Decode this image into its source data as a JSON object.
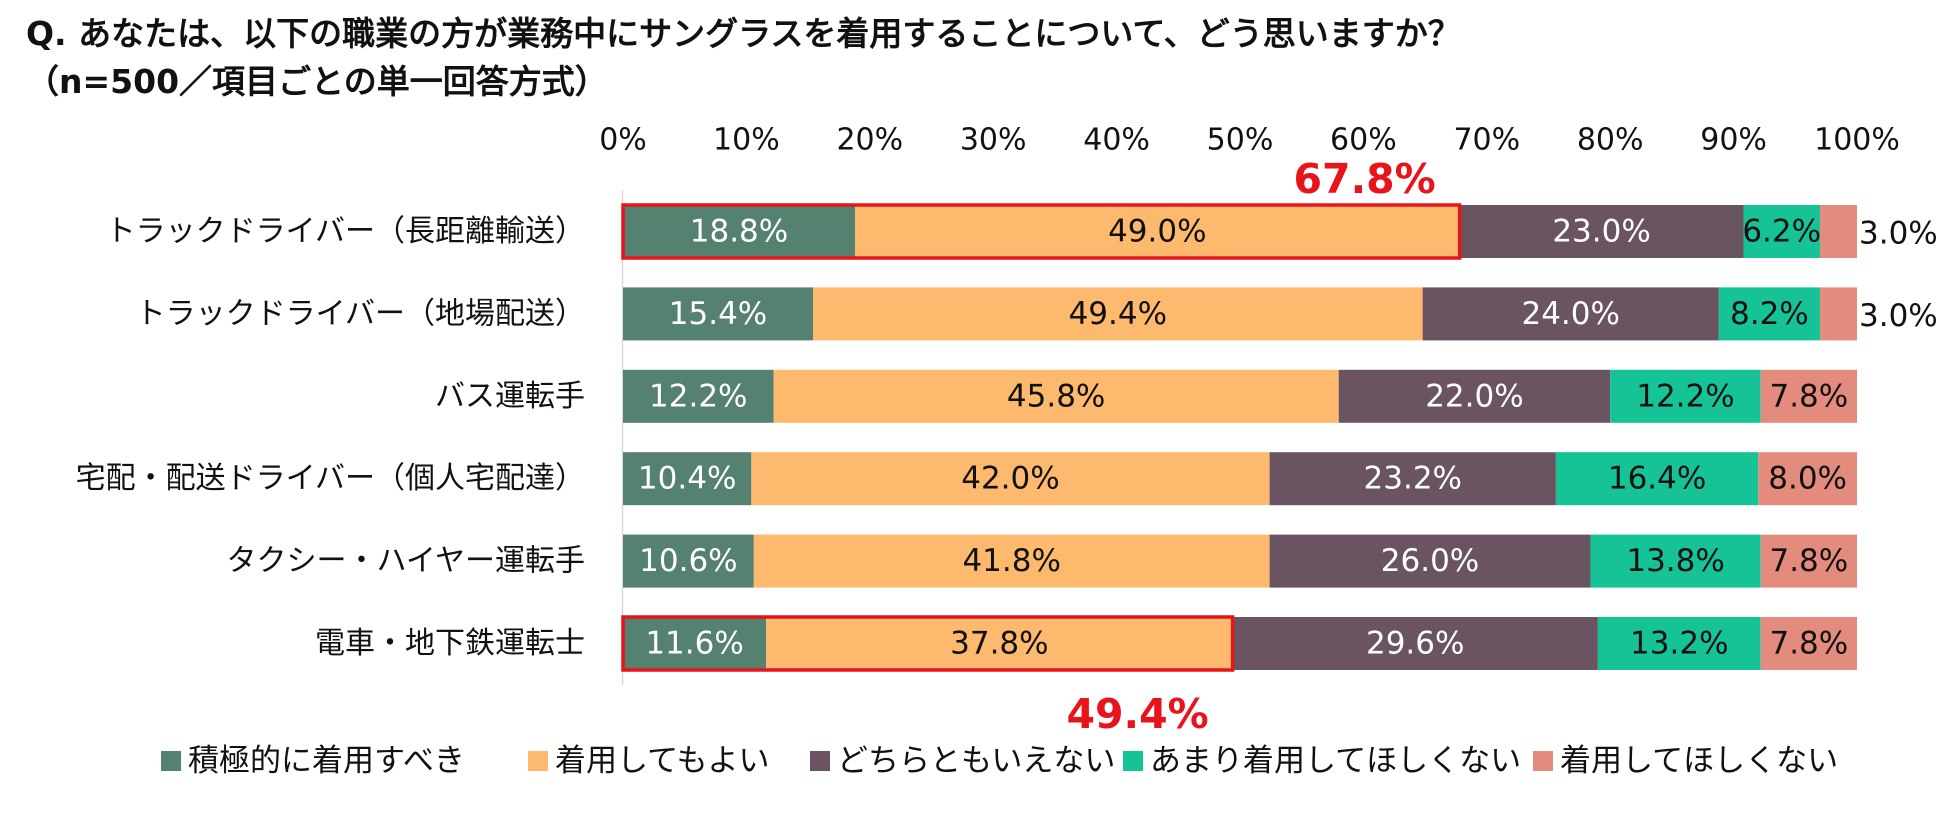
{
  "title_line1": "Q. あなたは、以下の職業の方が業務中にサングラスを着用することについて、どう思いますか？",
  "title_line2": "（n=500／項目ごとの単一回答方式）",
  "chart_data": {
    "type": "bar",
    "orientation": "horizontal-stacked-100",
    "xlim": [
      0,
      100
    ],
    "x_ticks": [
      "0%",
      "10%",
      "20%",
      "30%",
      "40%",
      "50%",
      "60%",
      "70%",
      "80%",
      "90%",
      "100%"
    ],
    "categories": [
      "トラックドライバー（長距離輸送）",
      "トラックドライバー（地場配送）",
      "バス運転手",
      "宅配・配送ドライバー（個人宅配達）",
      "タクシー・ハイヤー運転手",
      "電車・地下鉄運転士"
    ],
    "series": [
      {
        "name": "積極的に着用すべき",
        "color": "#548170",
        "values": [
          18.8,
          15.4,
          12.2,
          10.4,
          10.6,
          11.6
        ]
      },
      {
        "name": "着用してもよい",
        "color": "#FDBA6E",
        "values": [
          49.0,
          49.4,
          45.8,
          42.0,
          41.8,
          37.8
        ]
      },
      {
        "name": "どちらともいえない",
        "color": "#6A5461",
        "values": [
          23.0,
          24.0,
          22.0,
          23.2,
          26.0,
          29.6
        ]
      },
      {
        "name": "あまり着用してほしくない",
        "color": "#16C397",
        "values": [
          6.2,
          8.2,
          12.2,
          16.4,
          13.8,
          13.2
        ]
      },
      {
        "name": "着用してほしくない",
        "color": "#E38C7D",
        "values": [
          3.0,
          3.0,
          7.8,
          8.0,
          7.8,
          7.8
        ]
      }
    ],
    "annotations": [
      {
        "category_index": 0,
        "series_from": 0,
        "series_to": 1,
        "label": "67.8%",
        "position": "above",
        "color": "#E8141B"
      },
      {
        "category_index": 5,
        "series_from": 0,
        "series_to": 1,
        "label": "49.4%",
        "position": "below",
        "color": "#E8141B"
      }
    ],
    "legend_position": "bottom"
  }
}
